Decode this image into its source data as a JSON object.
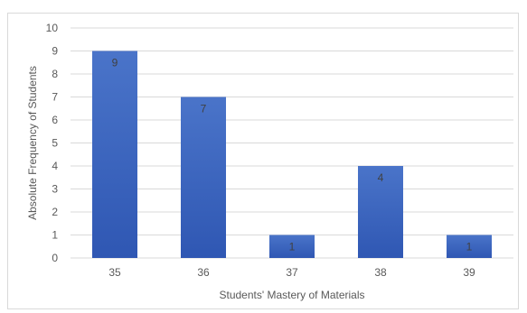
{
  "chart_data": {
    "type": "bar",
    "title": "",
    "xlabel": "Students' Mastery of Materials",
    "ylabel": "Absolute Frequency of Students",
    "categories": [
      "35",
      "36",
      "37",
      "38",
      "39"
    ],
    "values": [
      9,
      7,
      1,
      4,
      1
    ],
    "data_labels": [
      "9",
      "7",
      "1",
      "4",
      "1"
    ],
    "ylim": [
      0,
      10
    ],
    "yticks": [
      "0",
      "1",
      "2",
      "3",
      "4",
      "5",
      "6",
      "7",
      "8",
      "9",
      "10"
    ],
    "grid": true,
    "legend": "none",
    "bar_color_top": "#4a74c9",
    "bar_color_bottom": "#2f57b3",
    "grid_color": "#d9d9d9"
  }
}
